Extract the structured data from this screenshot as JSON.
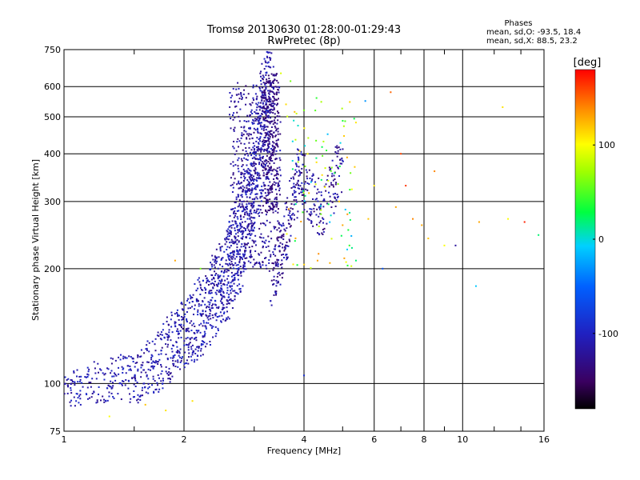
{
  "chart_data": {
    "type": "scatter",
    "title": "Tromsø 20130630 01:28:00-01:29:43",
    "subtitle": "RwPretec (8p)",
    "xlabel": "Frequency [MHz]",
    "ylabel": "Stationary phase Virtual Height [km]",
    "x_scale": "log",
    "y_scale": "log",
    "xlim": [
      1,
      16
    ],
    "ylim": [
      75,
      750
    ],
    "x_ticks": [
      1,
      2,
      4,
      6,
      8,
      10,
      16
    ],
    "x_minor": [
      1.5,
      3,
      5,
      7,
      9,
      12,
      14
    ],
    "y_ticks": [
      75,
      100,
      200,
      300,
      400,
      500,
      600,
      750
    ],
    "grid": true,
    "stats": {
      "heading": "Phases",
      "line_o": "mean, sd,O: -93.5, 18.4",
      "line_x": "mean, sd,X:  88.5, 23.2"
    },
    "colorbar": {
      "label": "[deg]",
      "min": -180,
      "max": 180,
      "ticks": [
        100,
        0,
        -100
      ],
      "colormap": "rainbow (black-purple-blue-cyan-green-yellow-orange-red)"
    },
    "o_trace": [
      [
        1.0,
        95
      ],
      [
        1.05,
        97
      ],
      [
        1.1,
        98
      ],
      [
        1.2,
        100
      ],
      [
        1.3,
        102
      ],
      [
        1.4,
        103
      ],
      [
        1.5,
        104
      ],
      [
        1.6,
        107
      ],
      [
        1.7,
        112
      ],
      [
        1.8,
        120
      ],
      [
        1.9,
        128
      ],
      [
        2.0,
        135
      ],
      [
        2.1,
        140
      ],
      [
        2.2,
        150
      ],
      [
        2.3,
        160
      ],
      [
        2.4,
        170
      ],
      [
        2.5,
        185
      ],
      [
        2.6,
        200
      ],
      [
        2.7,
        220
      ],
      [
        2.8,
        250
      ],
      [
        2.9,
        290
      ],
      [
        3.0,
        350
      ],
      [
        3.1,
        430
      ],
      [
        3.2,
        520
      ],
      [
        3.3,
        620
      ]
    ],
    "o_trace_phase": -110,
    "x_trace": [
      [
        3.3,
        180
      ],
      [
        3.4,
        200
      ],
      [
        3.5,
        220
      ],
      [
        3.6,
        250
      ],
      [
        3.7,
        280
      ],
      [
        3.8,
        320
      ],
      [
        3.9,
        360
      ],
      [
        4.0,
        330
      ],
      [
        4.2,
        300
      ],
      [
        4.4,
        290
      ],
      [
        4.6,
        310
      ],
      [
        4.8,
        350
      ],
      [
        5.0,
        380
      ]
    ],
    "x_trace_phase": -120,
    "scattered_points": [
      [
        4.0,
        520,
        60
      ],
      [
        4.1,
        440,
        80
      ],
      [
        4.3,
        380,
        110
      ],
      [
        4.6,
        340,
        90
      ],
      [
        4.9,
        300,
        120
      ],
      [
        5.0,
        260,
        130
      ],
      [
        5.2,
        230,
        40
      ],
      [
        5.4,
        210,
        20
      ],
      [
        5.7,
        550,
        -30
      ],
      [
        6.3,
        200,
        -60
      ],
      [
        6.6,
        580,
        150
      ],
      [
        7.0,
        400,
        160
      ],
      [
        7.2,
        330,
        165
      ],
      [
        7.5,
        270,
        140
      ],
      [
        7.9,
        260,
        130
      ],
      [
        8.2,
        240,
        120
      ],
      [
        8.5,
        360,
        140
      ],
      [
        9.0,
        230,
        100
      ],
      [
        9.6,
        230,
        -120
      ],
      [
        11.0,
        265,
        130
      ],
      [
        12.6,
        530,
        110
      ],
      [
        13.0,
        270,
        100
      ],
      [
        14.3,
        265,
        170
      ],
      [
        15.5,
        245,
        20
      ],
      [
        10.8,
        180,
        -10
      ],
      [
        4.0,
        105,
        -90
      ],
      [
        3.5,
        650,
        90
      ],
      [
        3.7,
        620,
        60
      ],
      [
        4.3,
        560,
        40
      ],
      [
        2.1,
        90,
        110
      ],
      [
        1.8,
        85,
        110
      ],
      [
        1.3,
        82,
        100
      ],
      [
        1.6,
        88,
        120
      ],
      [
        1.9,
        210,
        130
      ],
      [
        2.2,
        200,
        60
      ],
      [
        6.0,
        330,
        110
      ],
      [
        5.8,
        270,
        120
      ],
      [
        6.8,
        290,
        130
      ]
    ]
  }
}
